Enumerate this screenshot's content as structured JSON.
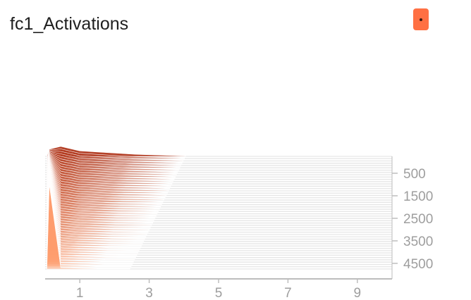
{
  "card": {
    "title": "fc1_Activations",
    "menu_icon": "dot-menu-icon",
    "accent_color": "#ff7043"
  },
  "chart_data": {
    "type": "area",
    "title": "fc1_Activations",
    "xlabel": "",
    "ylabel": "",
    "x_ticks": [
      "1",
      "3",
      "5",
      "7",
      "9"
    ],
    "y_ticks": [
      "500",
      "1500",
      "2500",
      "3500",
      "4500"
    ],
    "xlim": [
      0,
      10
    ],
    "step_range": [
      0,
      5000
    ],
    "num_histograms": 50,
    "color_oldest": "#b0371c",
    "color_newest": "#ff9e70",
    "grid": false,
    "legend": "none"
  }
}
